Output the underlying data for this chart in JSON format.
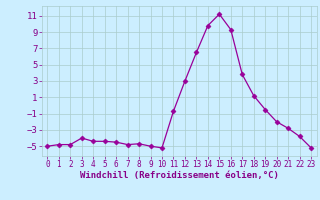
{
  "x": [
    0,
    1,
    2,
    3,
    4,
    5,
    6,
    7,
    8,
    9,
    10,
    11,
    12,
    13,
    14,
    15,
    16,
    17,
    18,
    19,
    20,
    21,
    22,
    23
  ],
  "y": [
    -5,
    -4.8,
    -4.8,
    -4.0,
    -4.4,
    -4.4,
    -4.5,
    -4.8,
    -4.7,
    -5.0,
    -5.2,
    -0.7,
    3.0,
    6.5,
    9.8,
    11.2,
    9.3,
    3.8,
    1.2,
    -0.5,
    -2.0,
    -2.8,
    -3.8,
    -5.2
  ],
  "line_color": "#990099",
  "marker": "D",
  "marker_size": 2.5,
  "bg_color": "#cceeff",
  "grid_color": "#aacccc",
  "xlabel": "Windchill (Refroidissement éolien,°C)",
  "ylabel": "",
  "yticks": [
    -5,
    -3,
    -1,
    1,
    3,
    5,
    7,
    9,
    11
  ],
  "xticks": [
    0,
    1,
    2,
    3,
    4,
    5,
    6,
    7,
    8,
    9,
    10,
    11,
    12,
    13,
    14,
    15,
    16,
    17,
    18,
    19,
    20,
    21,
    22,
    23
  ],
  "ylim": [
    -6.2,
    12.2
  ],
  "xlim": [
    -0.5,
    23.5
  ],
  "axis_label_color": "#880088",
  "tick_label_color": "#880088",
  "xlabel_fontsize": 6.5,
  "tick_fontsize_x": 5.5,
  "tick_fontsize_y": 6.5
}
